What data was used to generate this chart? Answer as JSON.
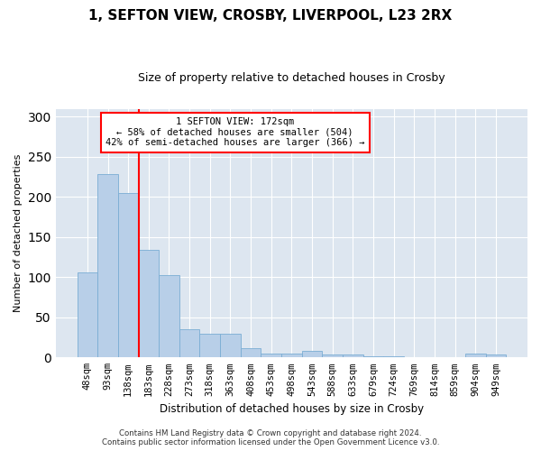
{
  "title": "1, SEFTON VIEW, CROSBY, LIVERPOOL, L23 2RX",
  "subtitle": "Size of property relative to detached houses in Crosby",
  "xlabel": "Distribution of detached houses by size in Crosby",
  "ylabel": "Number of detached properties",
  "bar_color": "#b8cfe8",
  "bar_edge_color": "#7aadd4",
  "background_color": "#dde6f0",
  "categories": [
    "48sqm",
    "93sqm",
    "138sqm",
    "183sqm",
    "228sqm",
    "273sqm",
    "318sqm",
    "363sqm",
    "408sqm",
    "453sqm",
    "498sqm",
    "543sqm",
    "588sqm",
    "633sqm",
    "679sqm",
    "724sqm",
    "769sqm",
    "814sqm",
    "859sqm",
    "904sqm",
    "949sqm"
  ],
  "values": [
    106,
    228,
    205,
    134,
    103,
    35,
    30,
    30,
    12,
    5,
    5,
    8,
    4,
    4,
    1,
    2,
    0,
    0,
    0,
    5,
    4
  ],
  "property_line_x": 2.5,
  "annotation_text": "1 SEFTON VIEW: 172sqm\n← 58% of detached houses are smaller (504)\n42% of semi-detached houses are larger (366) →",
  "annotation_box_color": "white",
  "annotation_box_edge_color": "red",
  "line_color": "red",
  "ylim": [
    0,
    310
  ],
  "yticks": [
    0,
    50,
    100,
    150,
    200,
    250,
    300
  ],
  "footnote": "Contains HM Land Registry data © Crown copyright and database right 2024.\nContains public sector information licensed under the Open Government Licence v3.0.",
  "grid_color": "white",
  "tick_fontsize": 7.5,
  "title_fontsize": 11,
  "subtitle_fontsize": 9,
  "ylabel_fontsize": 8,
  "xlabel_fontsize": 8.5,
  "footnote_fontsize": 6.2
}
